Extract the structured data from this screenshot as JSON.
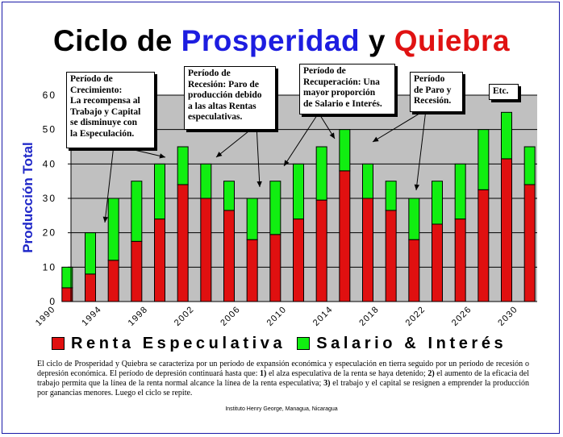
{
  "title": {
    "part1": "Ciclo de ",
    "part2": "Prosperidad",
    "part3": " y ",
    "part4": "Quiebra"
  },
  "colors": {
    "title_black": "#000000",
    "title_blue": "#1d1de0",
    "title_red": "#e01212",
    "plot_bg": "#c0c0c0",
    "renta": "#e01010",
    "salario": "#11ee11",
    "ylabel": "#1f27c8"
  },
  "chart_data": {
    "type": "bar",
    "stacked": true,
    "ylabel": "Producción Total",
    "xlabel": "",
    "ylim": [
      0,
      60
    ],
    "yticks": [
      0,
      10,
      20,
      30,
      40,
      50,
      60
    ],
    "yticklabels": [
      "0",
      "10",
      "20",
      "30",
      "40",
      "50",
      "60"
    ],
    "xlim": [
      1990,
      2032
    ],
    "xticks": [
      "1990",
      "1994",
      "1998",
      "2002",
      "2006",
      "2010",
      "2014",
      "2018",
      "2022",
      "2026",
      "2030"
    ],
    "grid": "horizontal",
    "x": [
      1990,
      1992,
      1994,
      1996,
      1998,
      2000,
      2002,
      2004,
      2006,
      2008,
      2010,
      2012,
      2014,
      2016,
      2018,
      2020,
      2022,
      2024,
      2026,
      2028,
      2030
    ],
    "totals": [
      10,
      20,
      30,
      35,
      40,
      45,
      40,
      35,
      30,
      35,
      40,
      45,
      50,
      40,
      35,
      30,
      35,
      40,
      50,
      55,
      45
    ],
    "series": [
      {
        "name": "Renta Especulativa",
        "values": [
          4,
          8,
          12,
          17.5,
          24,
          34,
          30,
          26.5,
          18,
          19.5,
          24,
          29.5,
          38,
          30,
          26.5,
          18,
          22.5,
          24,
          32.5,
          41.5,
          34
        ],
        "color": "#e01010"
      },
      {
        "name": "Salario & Interés",
        "values": [
          6,
          12,
          18,
          17.5,
          16,
          11,
          10,
          8.5,
          12,
          15.5,
          16,
          15.5,
          12,
          10,
          8.5,
          12,
          12.5,
          16,
          17.5,
          13.5,
          11
        ],
        "color": "#11ee11"
      }
    ],
    "legend": "bottom",
    "annotations": [
      {
        "text": "Período de Crecimiento: La recompensa al Trabajo y Capital se disminuye con la Especulación."
      },
      {
        "text": "Período de Recesión: Paro de producción debido a las altas Rentas especulativas."
      },
      {
        "text": "Período de Recuperación: Una mayor proporción de Salario e Interés."
      },
      {
        "text": "Período de Paro y Recesión."
      },
      {
        "text": "Etc."
      }
    ]
  },
  "notes": {
    "n1": [
      "Período de",
      "Crecimiento:",
      "La recompensa al",
      "Trabajo y Capital",
      "se disminuye con",
      "la Especulación."
    ],
    "n2": [
      "Período de",
      "Recesión: Paro de",
      "producción debido",
      "a las altas Rentas",
      "especulativas."
    ],
    "n3": [
      "Período de",
      "Recuperación:  Una",
      "mayor proporción",
      "de Salario e Interés."
    ],
    "n4": [
      "Período",
      "de Paro y",
      "Recesión."
    ],
    "n5": [
      "Etc."
    ]
  },
  "description": {
    "p1": "El ciclo de Prosperidad y Quiebra se caracteriza por un período de expansión económica y especulación en tierra seguido por un período de recesión o depresión económica. El período de depresión continuará hasta que: ",
    "n1": "1)",
    "p2": " el alza especulativa de la renta se haya detenido; ",
    "n2": "2)",
    "p3": " el aumento de la eficacia del trabajo permita que la línea de la renta normal alcance la línea de la renta especulativa; ",
    "n3": "3)",
    "p4": " el trabajo y el capital se resignen a emprender la producción por ganancias menores.  Luego el ciclo se repite."
  },
  "credit": "Instituto Henry George, Managua, Nicaragua"
}
